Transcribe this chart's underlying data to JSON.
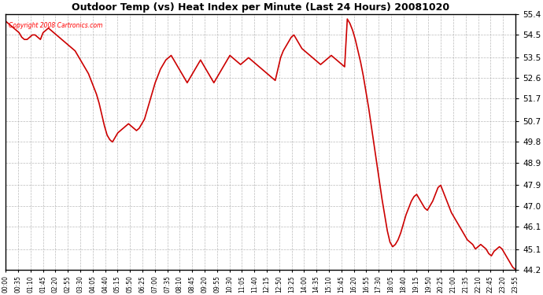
{
  "title": "Outdoor Temp (vs) Heat Index per Minute (Last 24 Hours) 20081020",
  "copyright_text": "Copyright 2008 Cartronics.com",
  "line_color": "#cc0000",
  "background_color": "#ffffff",
  "grid_color": "#aaaaaa",
  "ylim": [
    44.2,
    55.4
  ],
  "yticks": [
    44.2,
    45.1,
    46.1,
    47.0,
    47.9,
    48.9,
    49.8,
    50.7,
    51.7,
    52.6,
    53.5,
    54.5,
    55.4
  ],
  "xtick_labels": [
    "00:00",
    "00:35",
    "01:10",
    "01:45",
    "02:20",
    "02:55",
    "03:30",
    "04:05",
    "04:40",
    "05:15",
    "05:50",
    "06:25",
    "07:00",
    "07:35",
    "08:10",
    "08:45",
    "09:20",
    "09:55",
    "10:30",
    "11:05",
    "11:40",
    "12:15",
    "12:50",
    "13:25",
    "14:00",
    "14:35",
    "15:10",
    "15:45",
    "16:20",
    "16:55",
    "17:30",
    "18:05",
    "18:40",
    "19:15",
    "19:50",
    "20:25",
    "21:00",
    "21:35",
    "22:10",
    "22:45",
    "23:20",
    "23:55"
  ],
  "data_y": [
    55.1,
    55.0,
    54.9,
    54.8,
    54.7,
    54.6,
    54.4,
    54.3,
    54.3,
    54.4,
    54.5,
    54.5,
    54.4,
    54.3,
    54.6,
    54.7,
    54.8,
    54.7,
    54.6,
    54.5,
    54.4,
    54.3,
    54.2,
    54.1,
    54.0,
    53.9,
    53.8,
    53.6,
    53.4,
    53.2,
    53.0,
    52.8,
    52.5,
    52.2,
    51.9,
    51.5,
    51.0,
    50.5,
    50.1,
    49.9,
    49.8,
    50.0,
    50.2,
    50.3,
    50.4,
    50.5,
    50.6,
    50.5,
    50.4,
    50.3,
    50.4,
    50.6,
    50.8,
    51.2,
    51.6,
    52.0,
    52.4,
    52.7,
    53.0,
    53.2,
    53.4,
    53.5,
    53.6,
    53.4,
    53.2,
    53.0,
    52.8,
    52.6,
    52.4,
    52.6,
    52.8,
    53.0,
    53.2,
    53.4,
    53.2,
    53.0,
    52.8,
    52.6,
    52.4,
    52.6,
    52.8,
    53.0,
    53.2,
    53.4,
    53.6,
    53.5,
    53.4,
    53.3,
    53.2,
    53.3,
    53.4,
    53.5,
    53.4,
    53.3,
    53.2,
    53.1,
    53.0,
    52.9,
    52.8,
    52.7,
    52.6,
    52.5,
    53.0,
    53.5,
    53.8,
    54.0,
    54.2,
    54.4,
    54.5,
    54.3,
    54.1,
    53.9,
    53.8,
    53.7,
    53.6,
    53.5,
    53.4,
    53.3,
    53.2,
    53.3,
    53.4,
    53.5,
    53.6,
    53.5,
    53.4,
    53.3,
    53.2,
    53.1,
    55.2,
    55.0,
    54.7,
    54.3,
    53.8,
    53.3,
    52.7,
    52.0,
    51.3,
    50.5,
    49.7,
    48.9,
    48.1,
    47.3,
    46.6,
    45.9,
    45.4,
    45.2,
    45.3,
    45.5,
    45.8,
    46.2,
    46.6,
    46.9,
    47.2,
    47.4,
    47.5,
    47.3,
    47.1,
    46.9,
    46.8,
    47.0,
    47.2,
    47.5,
    47.8,
    47.9,
    47.6,
    47.3,
    47.0,
    46.7,
    46.5,
    46.3,
    46.1,
    45.9,
    45.7,
    45.5,
    45.4,
    45.3,
    45.1,
    45.2,
    45.3,
    45.2,
    45.1,
    44.9,
    44.8,
    45.0,
    45.1,
    45.2,
    45.1,
    44.9,
    44.7,
    44.5,
    44.3,
    44.2
  ]
}
